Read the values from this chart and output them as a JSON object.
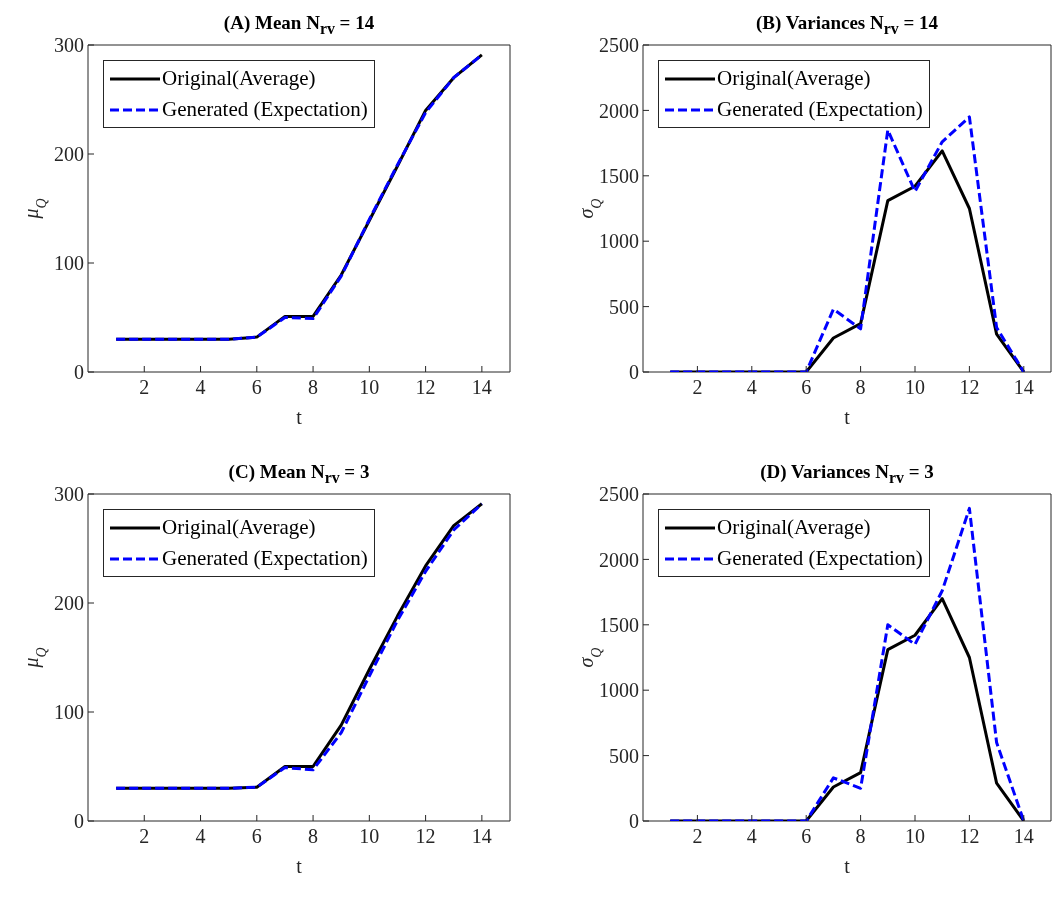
{
  "chart_data": [
    {
      "type": "line",
      "title": "(A) Mean  N$_{rv}$ = 14",
      "xlabel": "t",
      "ylabel": "μ$_{Q}$",
      "x": [
        1,
        2,
        3,
        4,
        5,
        6,
        7,
        8,
        9,
        10,
        11,
        12,
        13,
        14
      ],
      "xlim": [
        0,
        15
      ],
      "xticks": [
        2,
        4,
        6,
        8,
        10,
        12,
        14
      ],
      "ylim": [
        0,
        300
      ],
      "yticks": [
        0,
        100,
        200,
        300
      ],
      "legend": "top left",
      "series": [
        {
          "name": "Original(Average)",
          "color": "#000000",
          "line_style": "solid",
          "values": [
            30,
            30,
            30,
            30,
            30,
            32,
            51,
            51,
            89,
            139,
            189,
            240,
            270,
            291
          ]
        },
        {
          "name": "Generated (Expectation)",
          "color": "#0000ff",
          "line_style": "dashed",
          "values": [
            30,
            30,
            30,
            30,
            30,
            32,
            50,
            49,
            88,
            140,
            190,
            238,
            270,
            291
          ]
        }
      ]
    },
    {
      "type": "line",
      "title": "(B) Variances  N$_{rv}$ = 14",
      "xlabel": "t",
      "ylabel": "σ$_{Q}$",
      "x": [
        1,
        2,
        3,
        4,
        5,
        6,
        7,
        8,
        9,
        10,
        11,
        12,
        13,
        14
      ],
      "xlim": [
        0,
        15
      ],
      "xticks": [
        2,
        4,
        6,
        8,
        10,
        12,
        14
      ],
      "ylim": [
        0,
        2500
      ],
      "yticks": [
        0,
        500,
        1000,
        1500,
        2000,
        2500
      ],
      "legend": "top left",
      "series": [
        {
          "name": "Original(Average)",
          "color": "#000000",
          "line_style": "solid",
          "values": [
            0,
            0,
            0,
            0,
            0,
            0,
            260,
            370,
            1310,
            1420,
            1690,
            1250,
            290,
            0
          ]
        },
        {
          "name": "Generated (Expectation)",
          "color": "#0000ff",
          "line_style": "dashed",
          "values": [
            0,
            0,
            0,
            0,
            0,
            0,
            480,
            330,
            1850,
            1380,
            1760,
            1950,
            340,
            0
          ]
        }
      ]
    },
    {
      "type": "line",
      "title": "(C) Mean  N$_{rv}$ = 3",
      "xlabel": "t",
      "ylabel": "μ$_{Q}$",
      "x": [
        1,
        2,
        3,
        4,
        5,
        6,
        7,
        8,
        9,
        10,
        11,
        12,
        13,
        14
      ],
      "xlim": [
        0,
        15
      ],
      "xticks": [
        2,
        4,
        6,
        8,
        10,
        12,
        14
      ],
      "ylim": [
        0,
        300
      ],
      "yticks": [
        0,
        100,
        200,
        300
      ],
      "legend": "top left",
      "series": [
        {
          "name": "Original(Average)",
          "color": "#000000",
          "line_style": "solid",
          "values": [
            30,
            30,
            30,
            30,
            30,
            31,
            50,
            50,
            88,
            139,
            188,
            234,
            271,
            291
          ]
        },
        {
          "name": "Generated (Expectation)",
          "color": "#0000ff",
          "line_style": "dashed",
          "values": [
            30,
            30,
            30,
            30,
            30,
            31,
            49,
            47,
            81,
            133,
            184,
            229,
            267,
            291
          ]
        }
      ]
    },
    {
      "type": "line",
      "title": "(D) Variances  N$_{rv}$ = 3",
      "xlabel": "t",
      "ylabel": "σ$_{Q}$",
      "x": [
        1,
        2,
        3,
        4,
        5,
        6,
        7,
        8,
        9,
        10,
        11,
        12,
        13,
        14
      ],
      "xlim": [
        0,
        15
      ],
      "xticks": [
        2,
        4,
        6,
        8,
        10,
        12,
        14
      ],
      "ylim": [
        0,
        2500
      ],
      "yticks": [
        0,
        500,
        1000,
        1500,
        2000,
        2500
      ],
      "legend": "top left",
      "series": [
        {
          "name": "Original(Average)",
          "color": "#000000",
          "line_style": "solid",
          "values": [
            0,
            0,
            0,
            0,
            0,
            0,
            260,
            370,
            1310,
            1420,
            1700,
            1250,
            290,
            0
          ]
        },
        {
          "name": "Generated (Expectation)",
          "color": "#0000ff",
          "line_style": "dashed",
          "values": [
            0,
            0,
            0,
            0,
            0,
            0,
            330,
            250,
            1500,
            1350,
            1760,
            2390,
            600,
            0
          ]
        }
      ]
    }
  ]
}
